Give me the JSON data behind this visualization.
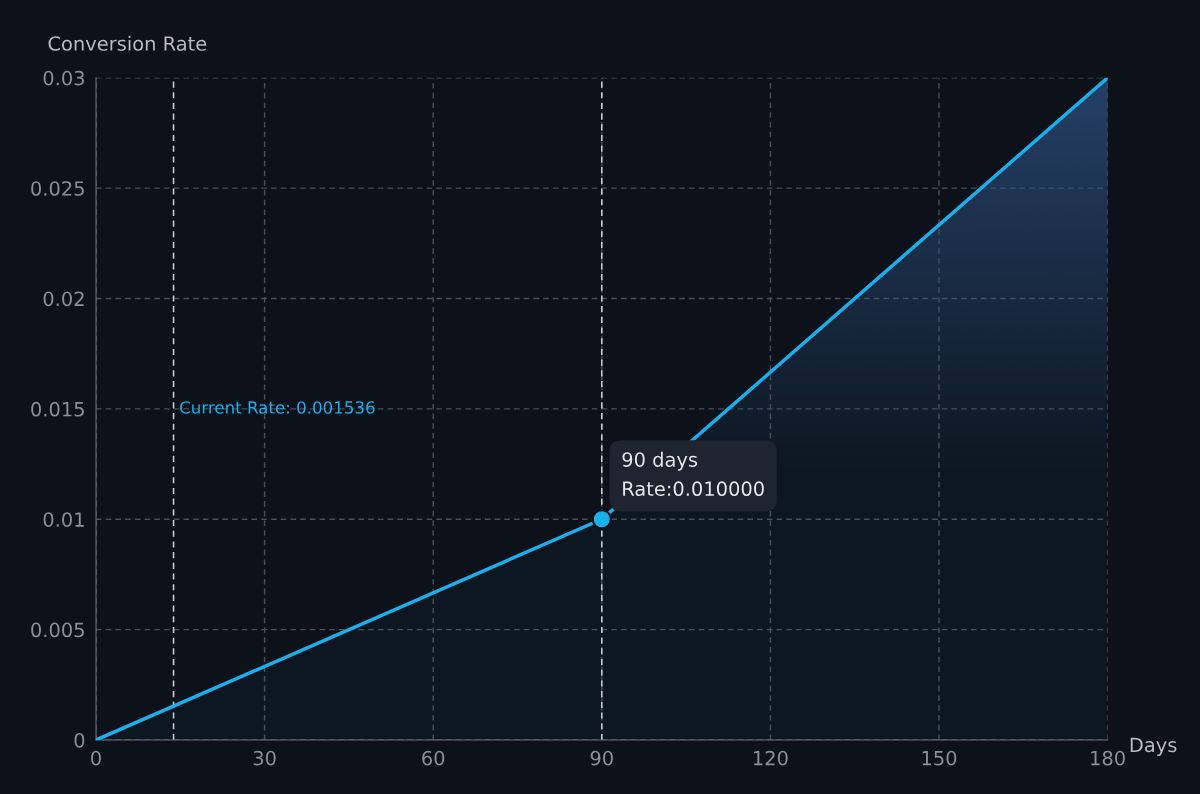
{
  "chart_data": {
    "type": "area",
    "ylabel": "Conversion Rate",
    "xlabel": "Days",
    "x": [
      0,
      90,
      180
    ],
    "series": [
      {
        "color": "#1ab0ee",
        "values": [
          0,
          0.01,
          0.03
        ]
      },
      {
        "type": "scatter",
        "color": "#1ab0ee",
        "x": [
          90
        ],
        "values": [
          0.01
        ]
      }
    ],
    "xlim": [
      0,
      180
    ],
    "xticks": [
      0,
      30,
      60,
      90,
      120,
      150,
      180
    ],
    "ylim": [
      0,
      0.03
    ],
    "yticks": [
      0,
      0.005,
      0.01,
      0.015,
      0.02,
      0.025,
      0.03
    ],
    "grid": true,
    "ref_lines": [
      {
        "axis": "x",
        "value": 13.8,
        "color": "#cfd3da",
        "line_style": "dashed"
      },
      {
        "axis": "x",
        "value": 90,
        "label": null,
        "color": "#cfd3da",
        "line_style": "dashed"
      }
    ],
    "annotations": [
      {
        "text": "90 days\nRate:0.010000",
        "x": 90,
        "y": 0.01
      },
      {
        "text": "Current Rate: 0.001536",
        "x": 13.8,
        "y": 0.015
      }
    ]
  }
}
